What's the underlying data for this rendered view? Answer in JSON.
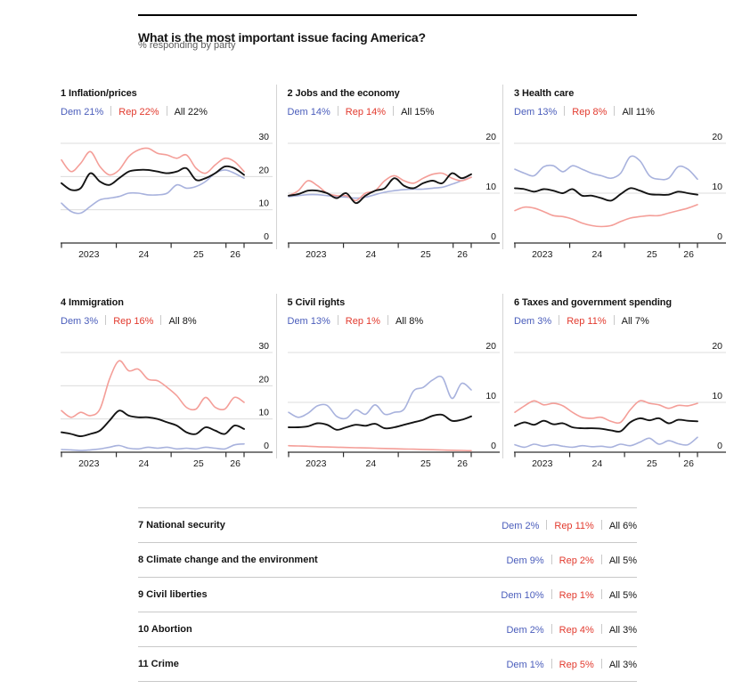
{
  "header": {
    "title": "What is the most important issue facing America?",
    "subtitle": "% responding by party"
  },
  "colors": {
    "dem_text": "#4a5dbb",
    "dem_line": "#a8b2dd",
    "rep_text": "#e23a2e",
    "rep_line": "#f49e98",
    "all_line": "#141414",
    "grid_line": "#dcdcdc",
    "axis_line": "#2e2e2e",
    "divider": "#d4d4d4"
  },
  "chart_data": [
    {
      "type": "line",
      "rank": "1",
      "title": "Inflation/prices",
      "legend": {
        "dem": "Dem 21%",
        "rep": "Rep 22%",
        "all": "All 22%"
      },
      "ylim": [
        0,
        30
      ],
      "yticks": [
        0,
        10,
        20,
        30
      ],
      "xlim": [
        2023,
        2026.33
      ],
      "xticks": [
        2023,
        2024,
        2025,
        2026,
        2026.33
      ],
      "xtick_labels": [
        "2023",
        "24",
        "25",
        "26"
      ],
      "series": [
        {
          "name": "Dem",
          "values": [
            12,
            9.5,
            9,
            11,
            13,
            13.5,
            14,
            15,
            15,
            14.5,
            14.5,
            15,
            17.5,
            16.5,
            17,
            18.5,
            21,
            22,
            21,
            19.5
          ]
        },
        {
          "name": "Rep",
          "values": [
            25,
            21.5,
            24,
            27.5,
            23,
            20.5,
            22,
            26,
            28,
            28.5,
            27,
            26.5,
            25.5,
            26.5,
            22.5,
            21,
            23.5,
            25.5,
            24.5,
            21.5
          ]
        },
        {
          "name": "All",
          "values": [
            18,
            16,
            16.5,
            21,
            18.5,
            17.5,
            19.5,
            21.5,
            22,
            22,
            21.5,
            21,
            21.5,
            22.5,
            19,
            19.5,
            21,
            23,
            22.5,
            20.5
          ]
        }
      ]
    },
    {
      "type": "line",
      "rank": "2",
      "title": "Jobs and the economy",
      "legend": {
        "dem": "Dem 14%",
        "rep": "Rep 14%",
        "all": "All 15%"
      },
      "ylim": [
        0,
        20
      ],
      "yticks": [
        0,
        10,
        20
      ],
      "xlim": [
        2023,
        2026.33
      ],
      "xticks": [
        2023,
        2024,
        2025,
        2026,
        2026.33
      ],
      "xtick_labels": [
        "2023",
        "24",
        "25",
        "26"
      ],
      "series": [
        {
          "name": "Dem",
          "values": [
            9.3,
            9.5,
            9.7,
            9.7,
            9.5,
            9.3,
            9.2,
            9,
            9.2,
            9.7,
            10.2,
            10.5,
            10.7,
            10.8,
            10.8,
            11,
            11.2,
            11.8,
            12.5,
            13.2
          ]
        },
        {
          "name": "Rep",
          "values": [
            9.5,
            10.5,
            12.5,
            11.5,
            10,
            9.5,
            9.5,
            8.5,
            10,
            10.5,
            12.5,
            13.5,
            12.5,
            12,
            13,
            13.8,
            14,
            13,
            12.5,
            13.2
          ]
        },
        {
          "name": "All",
          "values": [
            9.5,
            9.8,
            10.5,
            10.5,
            10,
            9,
            10,
            8,
            9.5,
            10.5,
            11,
            13,
            11.5,
            11,
            12,
            12.5,
            12,
            14,
            13,
            13.8
          ]
        }
      ]
    },
    {
      "type": "line",
      "rank": "3",
      "title": "Health care",
      "legend": {
        "dem": "Dem 13%",
        "rep": "Rep 8%",
        "all": "All 11%"
      },
      "ylim": [
        0,
        20
      ],
      "yticks": [
        0,
        10,
        20
      ],
      "xlim": [
        2023,
        2026.33
      ],
      "xticks": [
        2023,
        2024,
        2025,
        2026,
        2026.33
      ],
      "xtick_labels": [
        "2023",
        "24",
        "25",
        "26"
      ],
      "series": [
        {
          "name": "Dem",
          "values": [
            14.8,
            14,
            13.5,
            15.3,
            15.5,
            14.3,
            15.5,
            14.8,
            14,
            13.5,
            13,
            14,
            17.3,
            16.5,
            13.5,
            12.8,
            13,
            15.3,
            14.8,
            12.8
          ]
        },
        {
          "name": "Rep",
          "values": [
            6.5,
            7.2,
            7,
            6.3,
            5.5,
            5.3,
            4.8,
            4,
            3.5,
            3.3,
            3.5,
            4.3,
            5,
            5.3,
            5.5,
            5.5,
            6,
            6.5,
            7,
            7.7
          ]
        },
        {
          "name": "All",
          "values": [
            11,
            10.8,
            10.3,
            10.8,
            10.5,
            10,
            10.8,
            9.5,
            9.5,
            9,
            8.5,
            9.8,
            11,
            10.5,
            9.8,
            9.7,
            9.7,
            10.3,
            10,
            9.7
          ]
        }
      ]
    },
    {
      "type": "line",
      "rank": "4",
      "title": "Immigration",
      "legend": {
        "dem": "Dem 3%",
        "rep": "Rep 16%",
        "all": "All 8%"
      },
      "ylim": [
        0,
        30
      ],
      "yticks": [
        0,
        10,
        20,
        30
      ],
      "xlim": [
        2023,
        2026.33
      ],
      "xticks": [
        2023,
        2024,
        2025,
        2026,
        2026.33
      ],
      "xtick_labels": [
        "2023",
        "24",
        "25",
        "26"
      ],
      "series": [
        {
          "name": "Dem",
          "values": [
            0.8,
            0.7,
            0.5,
            0.7,
            1,
            1.5,
            2,
            1.2,
            1,
            1.5,
            1.2,
            1.5,
            1,
            1.2,
            1,
            1.5,
            1.2,
            1,
            2.2,
            2.5
          ]
        },
        {
          "name": "Rep",
          "values": [
            12.5,
            10.5,
            12,
            11,
            13,
            22,
            27.5,
            24.5,
            25,
            22,
            21.5,
            19.5,
            17,
            13.5,
            13,
            16.5,
            13.5,
            13,
            16.5,
            15
          ]
        },
        {
          "name": "All",
          "values": [
            6,
            5.5,
            4.8,
            5.5,
            6.5,
            9.5,
            12.5,
            11,
            10.5,
            10.5,
            10,
            9,
            8,
            6,
            5.5,
            7.5,
            6.5,
            5.5,
            8,
            7
          ]
        }
      ]
    },
    {
      "type": "line",
      "rank": "5",
      "title": "Civil rights",
      "legend": {
        "dem": "Dem 13%",
        "rep": "Rep 1%",
        "all": "All 8%"
      },
      "ylim": [
        0,
        20
      ],
      "yticks": [
        0,
        10,
        20
      ],
      "xlim": [
        2023,
        2026.33
      ],
      "xticks": [
        2023,
        2024,
        2025,
        2026,
        2026.33
      ],
      "xtick_labels": [
        "2023",
        "24",
        "25",
        "26"
      ],
      "series": [
        {
          "name": "Dem",
          "values": [
            8,
            7,
            7.8,
            9.3,
            9.4,
            7.2,
            6.8,
            8.5,
            7.6,
            9.5,
            7.6,
            8,
            8.6,
            12.3,
            13,
            14.5,
            15,
            10.8,
            13.8,
            12.5
          ]
        },
        {
          "name": "Rep",
          "values": [
            1.3,
            1.25,
            1.2,
            1.1,
            1.05,
            1,
            0.95,
            0.9,
            0.85,
            0.8,
            0.75,
            0.7,
            0.65,
            0.6,
            0.55,
            0.5,
            0.45,
            0.4,
            0.35,
            0.3
          ]
        },
        {
          "name": "All",
          "values": [
            5,
            5,
            5.2,
            5.8,
            5.5,
            4.5,
            5,
            5.5,
            5.3,
            5.7,
            4.8,
            5,
            5.5,
            6,
            6.5,
            7.3,
            7.5,
            6.3,
            6.5,
            7.2
          ]
        }
      ]
    },
    {
      "type": "line",
      "rank": "6",
      "title": "Taxes and government spending",
      "legend": {
        "dem": "Dem 3%",
        "rep": "Rep 11%",
        "all": "All 7%"
      },
      "ylim": [
        0,
        20
      ],
      "yticks": [
        0,
        10,
        20
      ],
      "xlim": [
        2023,
        2026.33
      ],
      "xticks": [
        2023,
        2024,
        2025,
        2026,
        2026.33
      ],
      "xtick_labels": [
        "2023",
        "24",
        "25",
        "26"
      ],
      "series": [
        {
          "name": "Dem",
          "values": [
            1.5,
            1,
            1.6,
            1.2,
            1.5,
            1.2,
            1,
            1.3,
            1.1,
            1.2,
            1,
            1.6,
            1.3,
            2,
            2.8,
            1.6,
            2.3,
            1.7,
            1.5,
            3
          ]
        },
        {
          "name": "Rep",
          "values": [
            8,
            9.3,
            10.3,
            9.5,
            9.8,
            9.3,
            8,
            7,
            6.8,
            7,
            6.2,
            6,
            8.5,
            10.3,
            9.8,
            9.5,
            8.8,
            9.4,
            9.3,
            9.8
          ]
        },
        {
          "name": "All",
          "values": [
            5.3,
            6,
            5.5,
            6.3,
            5.6,
            5.8,
            5,
            4.8,
            4.8,
            4.7,
            4.4,
            4.2,
            6,
            6.8,
            6.4,
            6.8,
            5.8,
            6.5,
            6.3,
            6.2
          ]
        }
      ]
    }
  ],
  "table": {
    "rows": [
      {
        "label": "7 National security",
        "dem": "Dem 2%",
        "rep": "Rep 11%",
        "all": "All 6%"
      },
      {
        "label": "8 Climate change and the environment",
        "dem": "Dem 9%",
        "rep": "Rep 2%",
        "all": "All 5%"
      },
      {
        "label": "9 Civil liberties",
        "dem": "Dem 10%",
        "rep": "Rep 1%",
        "all": "All 5%"
      },
      {
        "label": "10 Abortion",
        "dem": "Dem 2%",
        "rep": "Rep 4%",
        "all": "All 3%"
      },
      {
        "label": "11 Crime",
        "dem": "Dem 1%",
        "rep": "Rep 5%",
        "all": "All 3%"
      }
    ]
  }
}
